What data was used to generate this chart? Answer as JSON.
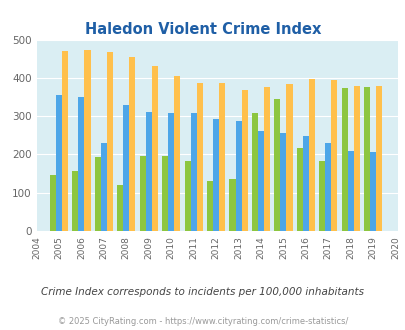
{
  "title": "Haledon Violent Crime Index",
  "years": [
    2004,
    2005,
    2006,
    2007,
    2008,
    2009,
    2010,
    2011,
    2012,
    2013,
    2014,
    2015,
    2016,
    2017,
    2018,
    2019,
    2020
  ],
  "haledon": [
    null,
    147,
    158,
    193,
    120,
    197,
    197,
    184,
    131,
    136,
    307,
    346,
    217,
    183,
    373,
    375,
    null
  ],
  "new_jersey": [
    null,
    355,
    350,
    230,
    330,
    312,
    309,
    309,
    293,
    288,
    262,
    255,
    247,
    230,
    210,
    207,
    null
  ],
  "national": [
    null,
    469,
    474,
    467,
    455,
    431,
    405,
    387,
    387,
    368,
    376,
    383,
    397,
    394,
    380,
    379,
    null
  ],
  "haledon_color": "#8dc63f",
  "nj_color": "#4da6e8",
  "national_color": "#ffc04c",
  "bg_color": "#daeef3",
  "grid_color": "#ffffff",
  "ylim": [
    0,
    500
  ],
  "yticks": [
    0,
    100,
    200,
    300,
    400,
    500
  ],
  "subtitle": "Crime Index corresponds to incidents per 100,000 inhabitants",
  "footer": "© 2025 CityRating.com - https://www.cityrating.com/crime-statistics/",
  "title_color": "#1f5fa6",
  "subtitle_color": "#444444",
  "footer_color": "#999999",
  "legend_label_color": "#333333"
}
